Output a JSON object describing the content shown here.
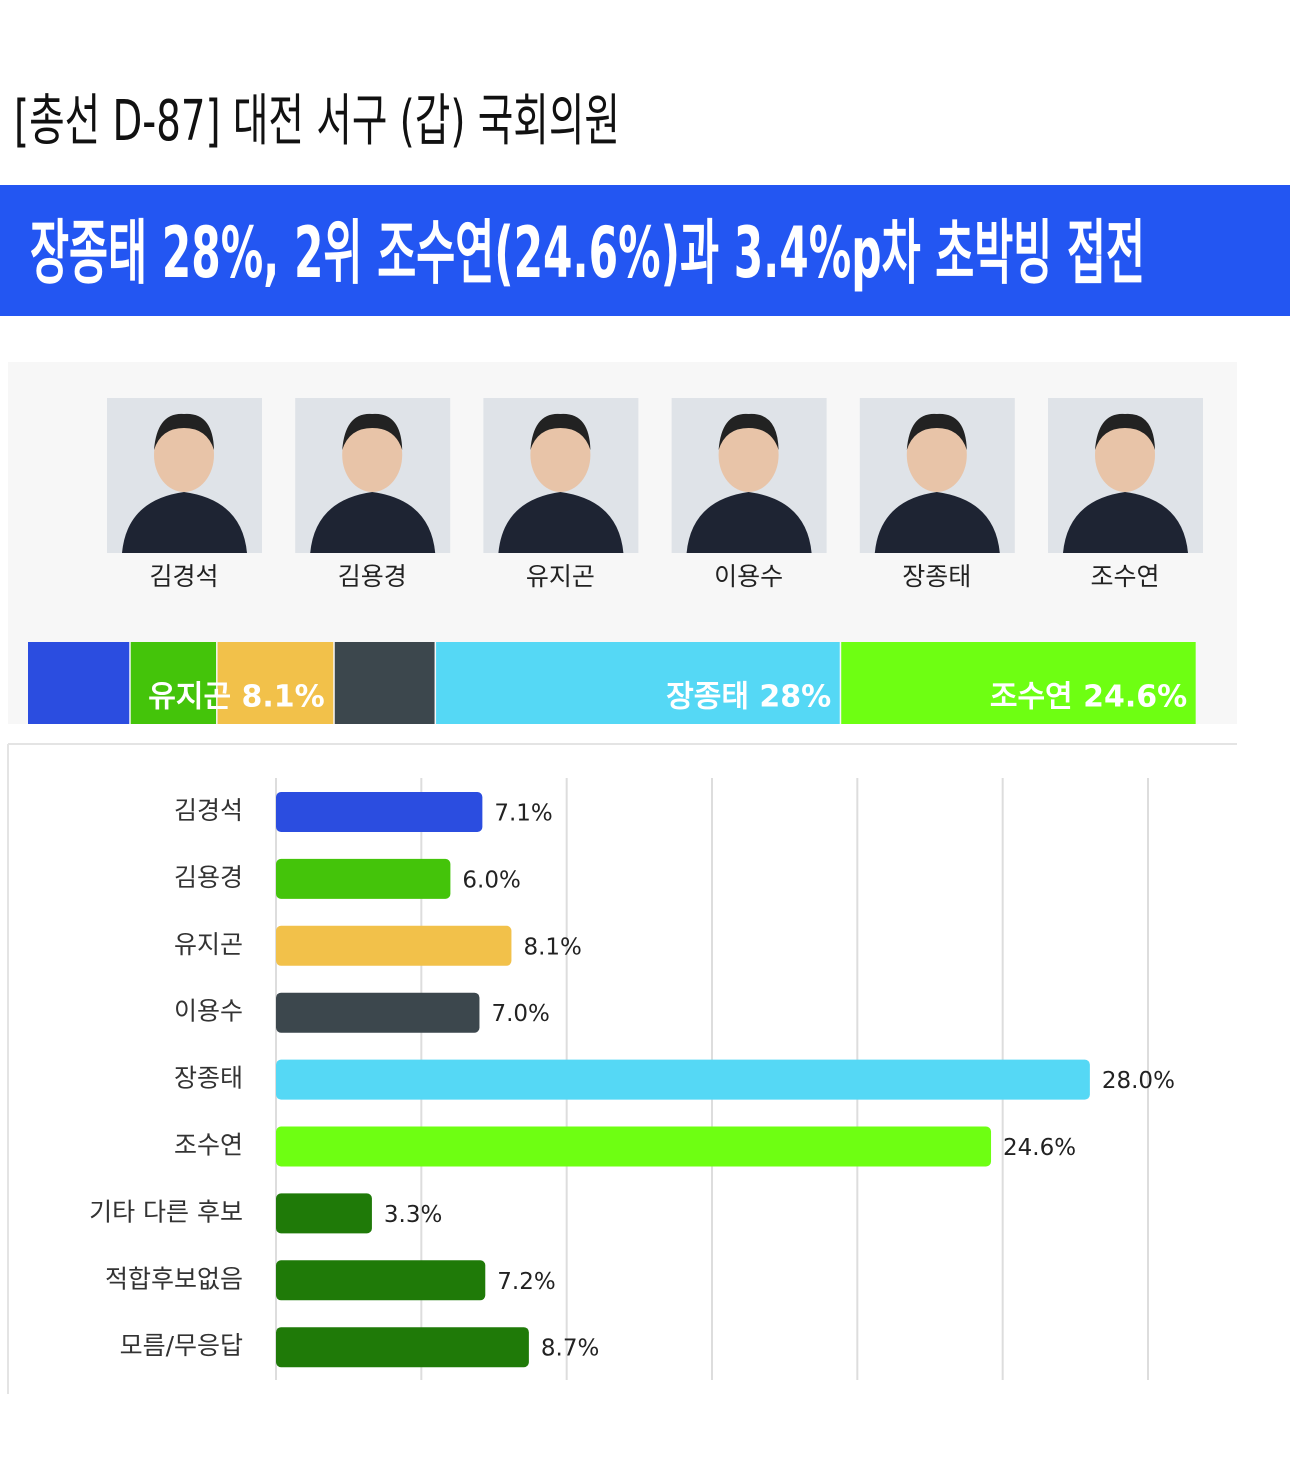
{
  "header": {
    "title": "[총선 D-87] 대전 서구 (갑) 국회의원",
    "headline": "장종태 28%, 2위 조수연(24.6%)과 3.4%p차 초박빙 접전"
  },
  "candidates": [
    "김경석",
    "김용경",
    "유지곤",
    "이용수",
    "장종태",
    "조수연"
  ],
  "chart_data": [
    {
      "type": "stacked-bar",
      "values": [
        7.1,
        6.0,
        8.1,
        7.0,
        28.0,
        24.6
      ],
      "value_labels": [
        null,
        null,
        "유지곤 8.1%",
        null,
        "장종태 28%",
        "조수연 24.6%"
      ],
      "colors": [
        "#2b4de0",
        "#44c40a",
        "#f2c14a",
        "#3c474d",
        "#55d8f5",
        "#6eff12"
      ]
    },
    {
      "type": "bar",
      "orientation": "horizontal",
      "categories": [
        "김경석",
        "김용경",
        "유지곤",
        "이용수",
        "장종태",
        "조수연",
        "기타 다른 후보",
        "적합후보없음",
        "모름/무응답"
      ],
      "values": [
        7.1,
        6.0,
        8.1,
        7.0,
        28.0,
        24.6,
        3.3,
        7.2,
        8.7
      ],
      "value_labels": [
        "7.1%",
        "6.0%",
        "8.1%",
        "7.0%",
        "28.0%",
        "24.6%",
        "3.3%",
        "7.2%",
        "8.7%"
      ],
      "colors": [
        "#2b4de0",
        "#44c40a",
        "#f2c14a",
        "#3c474d",
        "#55d8f5",
        "#6eff12",
        "#1f7a08",
        "#1f7a08",
        "#1f7a08"
      ],
      "xlim": [
        0,
        30
      ],
      "xticks": [
        0,
        5,
        10,
        15,
        20,
        25,
        30
      ],
      "grid": true
    }
  ]
}
